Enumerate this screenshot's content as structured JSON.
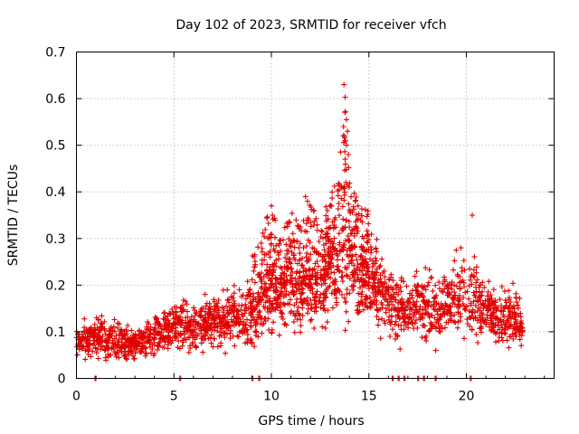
{
  "chart_data": {
    "type": "scatter",
    "title": "Day 102 of 2023, SRMTID for receiver vfch",
    "xlabel": "GPS time / hours",
    "ylabel": "SRMTID / TECUs",
    "xlim": [
      0,
      24.5
    ],
    "ylim": [
      0,
      0.7
    ],
    "xticks": [
      0,
      5,
      10,
      15,
      20
    ],
    "xtick_labels": [
      "0",
      "5",
      "10",
      "15",
      "20"
    ],
    "yticks": [
      0,
      0.1,
      0.2,
      0.3,
      0.4,
      0.5,
      0.6,
      0.7
    ],
    "ytick_labels": [
      "0",
      "0.1",
      "0.2",
      "0.3",
      "0.4",
      "0.5",
      "0.6",
      "0.7"
    ],
    "grid": true,
    "marker": "+",
    "marker_color": "#e00000",
    "series": [
      {
        "name": "SRMTID",
        "zero_points_x": [
          0.95,
          5.3,
          9.0,
          9.35,
          16.2,
          16.5,
          16.8,
          17.5,
          17.8,
          18.4,
          20.2
        ],
        "envelope": {
          "x": [
            0,
            1,
            2,
            3,
            4,
            5,
            6,
            7,
            8,
            9,
            9.5,
            10,
            10.5,
            11,
            11.5,
            12,
            12.5,
            13,
            13.5,
            13.75,
            14,
            14.5,
            15,
            15.5,
            16,
            16.5,
            17,
            17.5,
            18,
            18.5,
            19,
            19.5,
            20,
            20.5,
            21,
            21.5,
            22,
            22.5,
            22.9
          ],
          "center": [
            0.08,
            0.09,
            0.08,
            0.07,
            0.09,
            0.12,
            0.11,
            0.12,
            0.13,
            0.14,
            0.16,
            0.2,
            0.17,
            0.21,
            0.18,
            0.2,
            0.19,
            0.22,
            0.24,
            0.3,
            0.25,
            0.21,
            0.2,
            0.18,
            0.17,
            0.15,
            0.14,
            0.16,
            0.17,
            0.15,
            0.16,
            0.17,
            0.18,
            0.16,
            0.14,
            0.13,
            0.13,
            0.14,
            0.11
          ],
          "spread": [
            0.03,
            0.04,
            0.04,
            0.03,
            0.04,
            0.05,
            0.05,
            0.05,
            0.06,
            0.07,
            0.08,
            0.1,
            0.07,
            0.09,
            0.08,
            0.1,
            0.08,
            0.1,
            0.12,
            0.18,
            0.1,
            0.09,
            0.09,
            0.07,
            0.08,
            0.07,
            0.06,
            0.07,
            0.08,
            0.07,
            0.07,
            0.08,
            0.09,
            0.08,
            0.06,
            0.06,
            0.06,
            0.07,
            0.04
          ]
        },
        "peaks": [
          {
            "x": 13.72,
            "y": 0.63
          },
          {
            "x": 13.78,
            "y": 0.603
          },
          {
            "x": 13.8,
            "y": 0.572
          },
          {
            "x": 13.85,
            "y": 0.555
          },
          {
            "x": 13.7,
            "y": 0.54
          },
          {
            "x": 13.9,
            "y": 0.53
          },
          {
            "x": 13.75,
            "y": 0.52
          },
          {
            "x": 13.85,
            "y": 0.5
          },
          {
            "x": 13.95,
            "y": 0.48
          },
          {
            "x": 13.78,
            "y": 0.47
          },
          {
            "x": 10.0,
            "y": 0.37
          },
          {
            "x": 11.75,
            "y": 0.39
          },
          {
            "x": 11.85,
            "y": 0.38
          },
          {
            "x": 14.3,
            "y": 0.38
          },
          {
            "x": 20.3,
            "y": 0.35
          }
        ]
      }
    ]
  }
}
